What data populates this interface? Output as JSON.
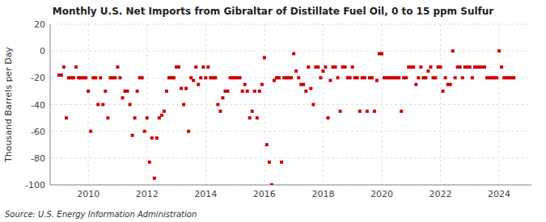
{
  "chart_data": {
    "type": "scatter",
    "title": "Monthly U.S. Net Imports from Gibraltar of Distillate Fuel Oil, 0 to 15 ppm Sulfur",
    "ylabel": "Thousand Barrels per Day",
    "source": "Source: U.S. Energy Information Administration",
    "color": "#cc0000",
    "marker": "square",
    "grid": true,
    "xlim": [
      2008.7,
      2025.1
    ],
    "xticks": [
      2010,
      2012,
      2014,
      2016,
      2018,
      2020,
      2022,
      2024
    ],
    "ylim": [
      -100,
      20
    ],
    "yticks": [
      -100,
      -80,
      -60,
      -40,
      -20,
      0,
      20
    ],
    "x": [
      2009.0,
      2009.083,
      2009.167,
      2009.25,
      2009.333,
      2009.417,
      2009.5,
      2009.583,
      2009.667,
      2009.75,
      2009.833,
      2009.917,
      2010.0,
      2010.083,
      2010.167,
      2010.25,
      2010.333,
      2010.417,
      2010.5,
      2010.583,
      2010.667,
      2010.75,
      2010.833,
      2010.917,
      2011.0,
      2011.083,
      2011.167,
      2011.25,
      2011.333,
      2011.417,
      2011.5,
      2011.583,
      2011.667,
      2011.75,
      2011.833,
      2011.917,
      2012.0,
      2012.083,
      2012.167,
      2012.25,
      2012.333,
      2012.417,
      2012.5,
      2012.583,
      2012.667,
      2012.75,
      2012.833,
      2012.917,
      2013.0,
      2013.083,
      2013.167,
      2013.25,
      2013.333,
      2013.417,
      2013.5,
      2013.583,
      2013.667,
      2013.75,
      2013.833,
      2013.917,
      2014.0,
      2014.083,
      2014.167,
      2014.25,
      2014.333,
      2014.417,
      2014.5,
      2014.583,
      2014.667,
      2014.75,
      2014.833,
      2014.917,
      2015.0,
      2015.083,
      2015.167,
      2015.25,
      2015.333,
      2015.417,
      2015.5,
      2015.583,
      2015.667,
      2015.75,
      2015.833,
      2015.917,
      2016.0,
      2016.083,
      2016.167,
      2016.25,
      2016.333,
      2016.417,
      2016.5,
      2016.583,
      2016.667,
      2016.75,
      2016.833,
      2016.917,
      2017.0,
      2017.083,
      2017.167,
      2017.25,
      2017.333,
      2017.417,
      2017.5,
      2017.583,
      2017.667,
      2017.75,
      2017.833,
      2017.917,
      2018.0,
      2018.083,
      2018.167,
      2018.25,
      2018.333,
      2018.417,
      2018.5,
      2018.583,
      2018.667,
      2018.75,
      2018.833,
      2018.917,
      2019.0,
      2019.083,
      2019.167,
      2019.25,
      2019.333,
      2019.417,
      2019.5,
      2019.583,
      2019.667,
      2019.75,
      2019.833,
      2019.917,
      2020.0,
      2020.083,
      2020.167,
      2020.25,
      2020.333,
      2020.417,
      2020.5,
      2020.583,
      2020.667,
      2020.75,
      2020.833,
      2020.917,
      2021.0,
      2021.083,
      2021.167,
      2021.25,
      2021.333,
      2021.417,
      2021.5,
      2021.583,
      2021.667,
      2021.75,
      2021.833,
      2021.917,
      2022.0,
      2022.083,
      2022.167,
      2022.25,
      2022.333,
      2022.417,
      2022.5,
      2022.583,
      2022.667,
      2022.75,
      2022.833,
      2022.917,
      2023.0,
      2023.083,
      2023.167,
      2023.25,
      2023.333,
      2023.417,
      2023.5,
      2023.583,
      2023.667,
      2023.75,
      2023.833,
      2023.917,
      2024.0,
      2024.083,
      2024.167,
      2024.25,
      2024.333,
      2024.417,
      2024.5
    ],
    "values": [
      -18,
      -18,
      -12,
      -50,
      -20,
      -20,
      -20,
      -12,
      -20,
      -20,
      -20,
      -20,
      -30,
      -60,
      -20,
      -20,
      -40,
      -20,
      -40,
      -30,
      -50,
      -20,
      -20,
      -20,
      -12,
      -20,
      -35,
      -30,
      -30,
      -40,
      -63,
      -50,
      -30,
      -20,
      -20,
      -60,
      -50,
      -83,
      -65,
      -95,
      -65,
      -50,
      -48,
      -45,
      -30,
      -20,
      -20,
      -20,
      -12,
      -12,
      -28,
      -40,
      -28,
      -60,
      -20,
      -22,
      -12,
      -25,
      -20,
      -12,
      -20,
      -12,
      -20,
      -20,
      -20,
      -40,
      -45,
      -35,
      -30,
      -30,
      -20,
      -20,
      -20,
      -20,
      -20,
      -30,
      -25,
      -30,
      -50,
      -45,
      -30,
      -50,
      -30,
      -25,
      -5,
      -70,
      -83,
      -100,
      -22,
      -20,
      -20,
      -83,
      -20,
      -20,
      -20,
      -20,
      -2,
      -15,
      -20,
      -25,
      -25,
      -30,
      -12,
      -28,
      -40,
      -12,
      -12,
      -20,
      -15,
      -12,
      -50,
      -22,
      -12,
      -12,
      -20,
      -45,
      -12,
      -12,
      -20,
      -20,
      -12,
      -20,
      -20,
      -45,
      -20,
      -20,
      -45,
      -20,
      -20,
      -45,
      -22,
      -2,
      -2,
      -20,
      -20,
      -20,
      -20,
      -20,
      -20,
      -20,
      -45,
      -20,
      -20,
      -12,
      -12,
      -12,
      -25,
      -20,
      -12,
      -20,
      -20,
      -15,
      -12,
      -20,
      -20,
      -12,
      -12,
      -30,
      -20,
      -25,
      -25,
      0,
      -20,
      -12,
      -12,
      -20,
      -12,
      -12,
      -12,
      -20,
      -12,
      -12,
      -12,
      -12,
      -12,
      -20,
      -20,
      -20,
      -20,
      -20,
      0,
      -12,
      -20,
      -20,
      -20,
      -20,
      -20
    ]
  }
}
